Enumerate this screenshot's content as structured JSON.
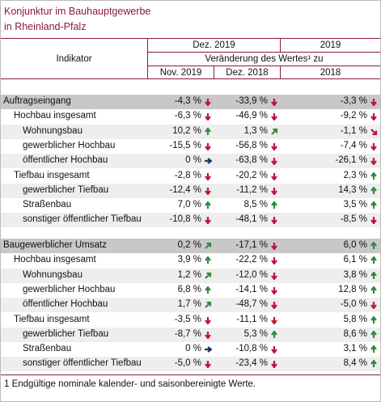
{
  "header": {
    "title": "Konjunktur im Bauhauptgewerbe",
    "subtitle": "in Rheinland-Pfalz"
  },
  "table": {
    "indicator": "Indikator",
    "period_a": "Dez. 2019",
    "period_b": "2019",
    "change": "Veränderung des Wertes¹ zu",
    "columns": [
      "Nov. 2019",
      "Dez. 2018",
      "2018"
    ],
    "sections": [
      {
        "label": "Auftragseingang",
        "values": [
          "-4,3 %",
          "-33,9 %",
          "-3,3 %"
        ],
        "arrows": [
          "down",
          "down",
          "down"
        ],
        "groups": [
          {
            "label": "Hochbau insgesamt",
            "values": [
              "-6,3 %",
              "-46,9 %",
              "-9,2 %"
            ],
            "arrows": [
              "down",
              "down",
              "down"
            ],
            "items": [
              {
                "label": "Wohnungsbau",
                "values": [
                  "10,2 %",
                  "1,3 %",
                  "-1,1 %"
                ],
                "arrows": [
                  "up",
                  "ne",
                  "se"
                ]
              },
              {
                "label": "gewerblicher Hochbau",
                "values": [
                  "-15,5 %",
                  "-56,8 %",
                  "-7,4 %"
                ],
                "arrows": [
                  "down",
                  "down",
                  "down"
                ]
              },
              {
                "label": "öffentlicher Hochbau",
                "values": [
                  "0 %",
                  "-63,8 %",
                  "-26,1 %"
                ],
                "arrows": [
                  "right",
                  "down",
                  "down"
                ]
              }
            ]
          },
          {
            "label": "Tiefbau insgesamt",
            "values": [
              "-2,8 %",
              "-20,2 %",
              "2,3 %"
            ],
            "arrows": [
              "down",
              "down",
              "up"
            ],
            "items": [
              {
                "label": "gewerblicher Tiefbau",
                "values": [
                  "-12,4 %",
                  "-11,2 %",
                  "14,3 %"
                ],
                "arrows": [
                  "down",
                  "down",
                  "up"
                ]
              },
              {
                "label": "Straßenbau",
                "values": [
                  "7,0 %",
                  "8,5 %",
                  "3,5 %"
                ],
                "arrows": [
                  "up",
                  "up",
                  "up"
                ]
              },
              {
                "label": "sonstiger öffentlicher Tiefbau",
                "values": [
                  "-10,8 %",
                  "-48,1 %",
                  "-8,5 %"
                ],
                "arrows": [
                  "down",
                  "down",
                  "down"
                ]
              }
            ]
          }
        ]
      },
      {
        "label": "Baugewerblicher Umsatz",
        "values": [
          "0,2 %",
          "-17,1 %",
          "6,0 %"
        ],
        "arrows": [
          "ne",
          "down",
          "up"
        ],
        "groups": [
          {
            "label": "Hochbau insgesamt",
            "values": [
              "3,9 %",
              "-22,2 %",
              "6,1 %"
            ],
            "arrows": [
              "up",
              "down",
              "up"
            ],
            "items": [
              {
                "label": "Wohnungsbau",
                "values": [
                  "1,2 %",
                  "-12,0 %",
                  "3,8 %"
                ],
                "arrows": [
                  "ne",
                  "down",
                  "up"
                ]
              },
              {
                "label": "gewerblicher Hochbau",
                "values": [
                  "6,8 %",
                  "-14,1 %",
                  "12,8 %"
                ],
                "arrows": [
                  "up",
                  "down",
                  "up"
                ]
              },
              {
                "label": "öffentlicher Hochbau",
                "values": [
                  "1,7 %",
                  "-48,7 %",
                  "-5,0 %"
                ],
                "arrows": [
                  "ne",
                  "down",
                  "down"
                ]
              }
            ]
          },
          {
            "label": "Tiefbau insgesamt",
            "values": [
              "-3,5 %",
              "-11,1 %",
              "5,8 %"
            ],
            "arrows": [
              "down",
              "down",
              "up"
            ],
            "items": [
              {
                "label": "gewerblicher Tiefbau",
                "values": [
                  "-8,7 %",
                  "5,3 %",
                  "8,6 %"
                ],
                "arrows": [
                  "down",
                  "up",
                  "up"
                ]
              },
              {
                "label": "Straßenbau",
                "values": [
                  "0 %",
                  "-10,8 %",
                  "3,1 %"
                ],
                "arrows": [
                  "right",
                  "down",
                  "up"
                ]
              },
              {
                "label": "sonstiger öffentlicher Tiefbau",
                "values": [
                  "-5,0 %",
                  "-23,4 %",
                  "8,4 %"
                ],
                "arrows": [
                  "down",
                  "down",
                  "up"
                ]
              }
            ]
          }
        ]
      }
    ]
  },
  "footnote": "1 Endgültige nominale kalender- und saisonbereinigte Werte."
}
